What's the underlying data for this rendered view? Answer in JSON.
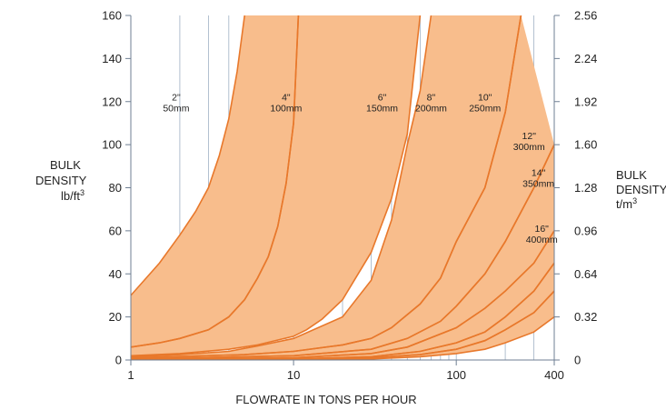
{
  "chart_data": {
    "type": "area",
    "title": "",
    "xlabel": "FLOWRATE  IN  TONS  PER  HOUR",
    "ylabel_left": [
      "BULK",
      "DENSITY",
      "lb/ft"
    ],
    "ylabel_left_sup": "3",
    "ylabel_right": [
      "BULK",
      "DENSITY",
      "t/m"
    ],
    "ylabel_right_sup": "3",
    "x_scale": "log",
    "xlim": [
      1,
      400
    ],
    "ylim": [
      0,
      160
    ],
    "x_tick_labels": [
      "1",
      "10",
      "100",
      "400"
    ],
    "x_ticks": [
      1,
      10,
      100,
      400
    ],
    "y_ticks": [
      0,
      20,
      40,
      60,
      80,
      100,
      120,
      140,
      160
    ],
    "y_tick_labels": [
      "0",
      "20",
      "40",
      "60",
      "80",
      "100",
      "120",
      "140",
      "160"
    ],
    "y2_ticks": [
      0,
      0.32,
      0.64,
      0.96,
      1.28,
      1.6,
      1.92,
      2.24,
      2.56
    ],
    "y2_tick_labels": [
      "0",
      "0.32",
      "0.64",
      "0.96",
      "1.28",
      "1.60",
      "1.92",
      "2.24",
      "2.56"
    ],
    "grid": "x-minor",
    "band_color": "#f8bd8c",
    "edge_color": "#e8782b",
    "bands": [
      {
        "inch": "2\"",
        "mm": "50mm",
        "label_at": [
          1.9,
          118
        ],
        "upper": [
          [
            1,
            30
          ],
          [
            1.5,
            45
          ],
          [
            2,
            58
          ],
          [
            2.5,
            69
          ],
          [
            3,
            80
          ],
          [
            3.5,
            95
          ],
          [
            4,
            112
          ],
          [
            4.5,
            134
          ],
          [
            5,
            160
          ]
        ],
        "lower": [
          [
            1,
            6
          ],
          [
            1.5,
            8
          ],
          [
            2,
            10
          ],
          [
            3,
            14
          ],
          [
            4,
            20
          ],
          [
            5,
            28
          ],
          [
            6,
            38
          ],
          [
            7,
            48
          ],
          [
            8,
            62
          ],
          [
            9,
            82
          ],
          [
            10,
            110
          ],
          [
            10.7,
            160
          ]
        ]
      },
      {
        "inch": "4\"",
        "mm": "100mm",
        "label_at": [
          9.0,
          118
        ],
        "upper": [
          [
            1,
            6
          ],
          [
            1.5,
            8
          ],
          [
            2,
            10
          ],
          [
            3,
            14
          ],
          [
            4,
            20
          ],
          [
            5,
            28
          ],
          [
            6,
            38
          ],
          [
            7,
            48
          ],
          [
            8,
            62
          ],
          [
            9,
            82
          ],
          [
            10,
            110
          ],
          [
            10.7,
            160
          ]
        ],
        "lower": [
          [
            1,
            2
          ],
          [
            2,
            3
          ],
          [
            4,
            5
          ],
          [
            6,
            7
          ],
          [
            10,
            11
          ],
          [
            12,
            14
          ],
          [
            15,
            19
          ],
          [
            20,
            28
          ],
          [
            30,
            50
          ],
          [
            40,
            75
          ],
          [
            50,
            105
          ],
          [
            60,
            160
          ]
        ]
      },
      {
        "inch": "6\"",
        "mm": "150mm",
        "label_at": [
          35,
          118
        ],
        "upper": [
          [
            1,
            1.5
          ],
          [
            2,
            2.5
          ],
          [
            4,
            4
          ],
          [
            6,
            6.5
          ],
          [
            10,
            10
          ],
          [
            20,
            20
          ],
          [
            30,
            37
          ],
          [
            40,
            65
          ],
          [
            50,
            100
          ],
          [
            60,
            125
          ],
          [
            70,
            160
          ]
        ],
        "lower": [
          [
            1,
            1
          ],
          [
            5,
            2.5
          ],
          [
            10,
            4
          ],
          [
            20,
            7
          ],
          [
            30,
            10
          ],
          [
            40,
            15
          ],
          [
            60,
            26
          ],
          [
            80,
            38
          ],
          [
            100,
            55
          ],
          [
            150,
            80
          ],
          [
            200,
            115
          ],
          [
            250,
            160
          ]
        ]
      },
      {
        "inch": "8\"",
        "mm": "200mm",
        "label_at": [
          70,
          118
        ],
        "upper": [
          [
            1,
            1
          ],
          [
            5,
            2.5
          ],
          [
            10,
            4
          ],
          [
            20,
            7
          ],
          [
            30,
            10
          ],
          [
            40,
            15
          ],
          [
            60,
            26
          ],
          [
            80,
            38
          ],
          [
            100,
            55
          ],
          [
            150,
            80
          ],
          [
            200,
            115
          ],
          [
            250,
            160
          ]
        ],
        "lower": [
          [
            1,
            0.5
          ],
          [
            10,
            2
          ],
          [
            30,
            5
          ],
          [
            50,
            10
          ],
          [
            80,
            18
          ],
          [
            100,
            25
          ],
          [
            150,
            40
          ],
          [
            200,
            55
          ],
          [
            300,
            80
          ],
          [
            400,
            100
          ]
        ]
      },
      {
        "inch": "10\"",
        "mm": "250mm",
        "label_at": [
          150,
          118
        ],
        "upper": [
          [
            1,
            0.5
          ],
          [
            10,
            2
          ],
          [
            30,
            5
          ],
          [
            50,
            10
          ],
          [
            80,
            18
          ],
          [
            100,
            25
          ],
          [
            150,
            40
          ],
          [
            200,
            55
          ],
          [
            300,
            80
          ],
          [
            400,
            100
          ]
        ],
        "lower": [
          [
            1,
            0.3
          ],
          [
            10,
            1
          ],
          [
            30,
            3
          ],
          [
            50,
            6
          ],
          [
            100,
            15
          ],
          [
            150,
            24
          ],
          [
            200,
            32
          ],
          [
            300,
            45
          ],
          [
            400,
            60
          ]
        ]
      },
      {
        "inch": "12\"",
        "mm": "300mm",
        "label_at": [
          280,
          100
        ],
        "upper": [
          [
            1,
            0.3
          ],
          [
            10,
            1
          ],
          [
            30,
            3
          ],
          [
            50,
            6
          ],
          [
            100,
            15
          ],
          [
            150,
            24
          ],
          [
            200,
            32
          ],
          [
            300,
            45
          ],
          [
            400,
            60
          ]
        ],
        "lower": [
          [
            1,
            0.2
          ],
          [
            10,
            0.5
          ],
          [
            30,
            1.5
          ],
          [
            60,
            4
          ],
          [
            100,
            8
          ],
          [
            150,
            13
          ],
          [
            200,
            20
          ],
          [
            300,
            32
          ],
          [
            400,
            45
          ]
        ]
      },
      {
        "inch": "14\"",
        "mm": "350mm",
        "label_at": [
          320,
          83
        ],
        "upper": [
          [
            1,
            0.2
          ],
          [
            10,
            0.5
          ],
          [
            30,
            1.5
          ],
          [
            60,
            4
          ],
          [
            100,
            8
          ],
          [
            150,
            13
          ],
          [
            200,
            20
          ],
          [
            300,
            32
          ],
          [
            400,
            45
          ]
        ],
        "lower": [
          [
            1,
            0.1
          ],
          [
            10,
            0.3
          ],
          [
            30,
            1
          ],
          [
            60,
            2.5
          ],
          [
            100,
            5
          ],
          [
            150,
            9
          ],
          [
            200,
            14
          ],
          [
            300,
            22
          ],
          [
            400,
            32
          ]
        ]
      },
      {
        "inch": "16\"",
        "mm": "400mm",
        "label_at": [
          335,
          57
        ],
        "upper": [
          [
            1,
            0.1
          ],
          [
            10,
            0.3
          ],
          [
            30,
            1
          ],
          [
            60,
            2.5
          ],
          [
            100,
            5
          ],
          [
            150,
            9
          ],
          [
            200,
            14
          ],
          [
            300,
            22
          ],
          [
            400,
            32
          ]
        ],
        "lower": [
          [
            1,
            0
          ],
          [
            10,
            0.1
          ],
          [
            30,
            0.5
          ],
          [
            60,
            1.5
          ],
          [
            100,
            3
          ],
          [
            150,
            5
          ],
          [
            200,
            8
          ],
          [
            300,
            13
          ],
          [
            400,
            20
          ]
        ]
      }
    ]
  }
}
